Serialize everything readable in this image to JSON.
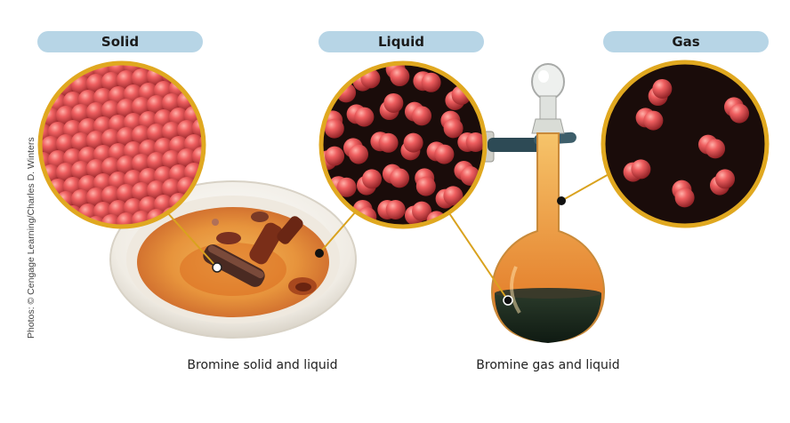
{
  "phases": [
    {
      "label": "Solid"
    },
    {
      "label": "Liquid"
    },
    {
      "label": "Gas"
    }
  ],
  "captions": {
    "left": "Bromine solid and liquid",
    "right": "Bromine gas and liquid"
  },
  "credit": "Photos: © Cengage Learning/Charles D. Winters",
  "colors": {
    "pill": "#b7d5e6",
    "ring": "#e0a820",
    "molecule": "#e54a50",
    "circle_bg": "#1a0c0a"
  }
}
